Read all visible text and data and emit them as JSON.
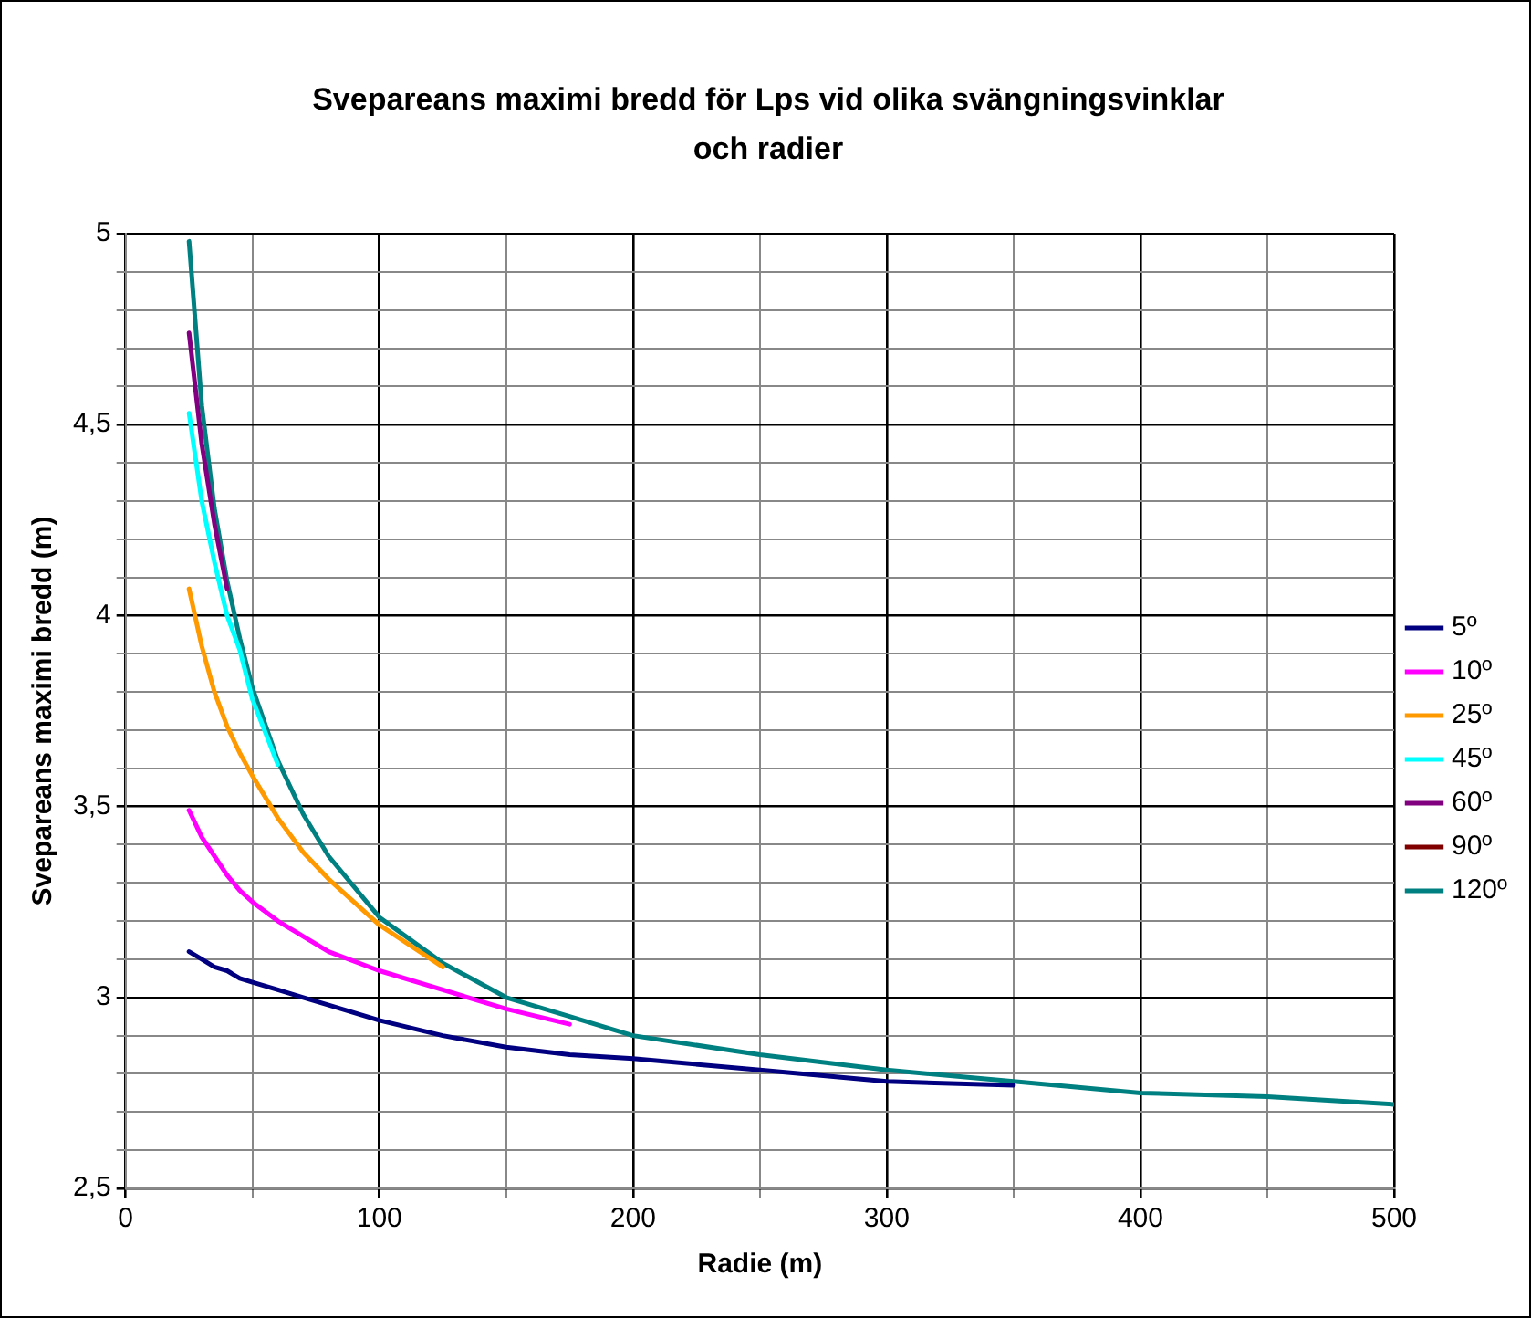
{
  "chart_data": {
    "type": "line",
    "title": "Svepareans maximi bredd för Lps vid olika svängningsvinklar och radier",
    "xlabel": "Radie (m)",
    "ylabel": "Svepareans maximi bredd (m)",
    "x": [
      25,
      30,
      35,
      40,
      45,
      50,
      60,
      70,
      80,
      100,
      125,
      150,
      175,
      200,
      250,
      300,
      350,
      400,
      450,
      500
    ],
    "series": [
      {
        "name": "5º",
        "color": "#000080",
        "values": [
          3.12,
          3.1,
          3.08,
          3.07,
          3.05,
          3.04,
          3.02,
          3.0,
          2.98,
          2.94,
          2.9,
          2.87,
          2.85,
          2.84,
          2.81,
          2.78,
          2.77,
          null,
          null,
          null
        ]
      },
      {
        "name": "10º",
        "color": "#ff00ff",
        "values": [
          3.49,
          3.42,
          3.37,
          3.32,
          3.28,
          3.25,
          3.2,
          3.16,
          3.12,
          3.07,
          3.02,
          2.97,
          2.93,
          null,
          null,
          null,
          null,
          null,
          null,
          null
        ]
      },
      {
        "name": "25º",
        "color": "#ff9900",
        "values": [
          4.07,
          3.92,
          3.8,
          3.71,
          3.64,
          3.58,
          3.47,
          3.38,
          3.31,
          3.19,
          3.08,
          null,
          null,
          null,
          null,
          null,
          null,
          null,
          null,
          null
        ]
      },
      {
        "name": "45º",
        "color": "#00ffff",
        "values": [
          4.53,
          4.3,
          4.14,
          4.0,
          3.91,
          3.78,
          3.61,
          null,
          null,
          null,
          null,
          null,
          null,
          null,
          null,
          null,
          null,
          null,
          null,
          null
        ]
      },
      {
        "name": "60º",
        "color": "#800080",
        "values": [
          4.74,
          4.45,
          4.24,
          4.07,
          null,
          null,
          null,
          null,
          null,
          null,
          null,
          null,
          null,
          null,
          null,
          null,
          null,
          null,
          null,
          null
        ]
      },
      {
        "name": "90º",
        "color": "#800000",
        "values": [
          null,
          null,
          null,
          null,
          null,
          null,
          null,
          null,
          null,
          null,
          null,
          null,
          null,
          null,
          null,
          null,
          null,
          null,
          null,
          null
        ]
      },
      {
        "name": "120º",
        "color": "#008080",
        "values": [
          4.98,
          4.55,
          4.28,
          4.09,
          3.94,
          3.81,
          3.62,
          3.48,
          3.37,
          3.21,
          3.09,
          3.0,
          2.95,
          2.9,
          2.85,
          2.81,
          2.78,
          2.75,
          2.74,
          2.72
        ]
      }
    ],
    "xlim": [
      0,
      500
    ],
    "xticks": [
      0,
      {
        "value": 50,
        "label": null
      },
      100,
      {
        "value": 150,
        "label": null
      },
      200,
      {
        "value": 250,
        "label": null
      },
      300,
      {
        "value": 350,
        "label": null
      },
      400,
      {
        "value": 450,
        "label": null
      },
      500
    ],
    "ylim": [
      2.5,
      5
    ],
    "yticks": [
      {
        "value": 2.5,
        "label": "2,5"
      },
      {
        "value": 2.6,
        "label": null
      },
      {
        "value": 2.7,
        "label": null
      },
      {
        "value": 2.8,
        "label": null
      },
      {
        "value": 2.9,
        "label": null
      },
      3,
      {
        "value": 3.1,
        "label": null
      },
      {
        "value": 3.2,
        "label": null
      },
      {
        "value": 3.3,
        "label": null
      },
      {
        "value": 3.4,
        "label": null
      },
      {
        "value": 3.5,
        "label": "3,5"
      },
      {
        "value": 3.6,
        "label": null
      },
      {
        "value": 3.7,
        "label": null
      },
      {
        "value": 3.8,
        "label": null
      },
      {
        "value": 3.9,
        "label": null
      },
      4,
      {
        "value": 4.1,
        "label": null
      },
      {
        "value": 4.2,
        "label": null
      },
      {
        "value": 4.3,
        "label": null
      },
      {
        "value": 4.4,
        "label": null
      },
      {
        "value": 4.5,
        "label": "4,5"
      },
      {
        "value": 4.6,
        "label": null
      },
      {
        "value": 4.7,
        "label": null
      },
      {
        "value": 4.8,
        "label": null
      },
      {
        "value": 4.9,
        "label": null
      },
      5
    ],
    "grid": true,
    "legend": "right",
    "marker": "none",
    "line_style": "solid"
  }
}
